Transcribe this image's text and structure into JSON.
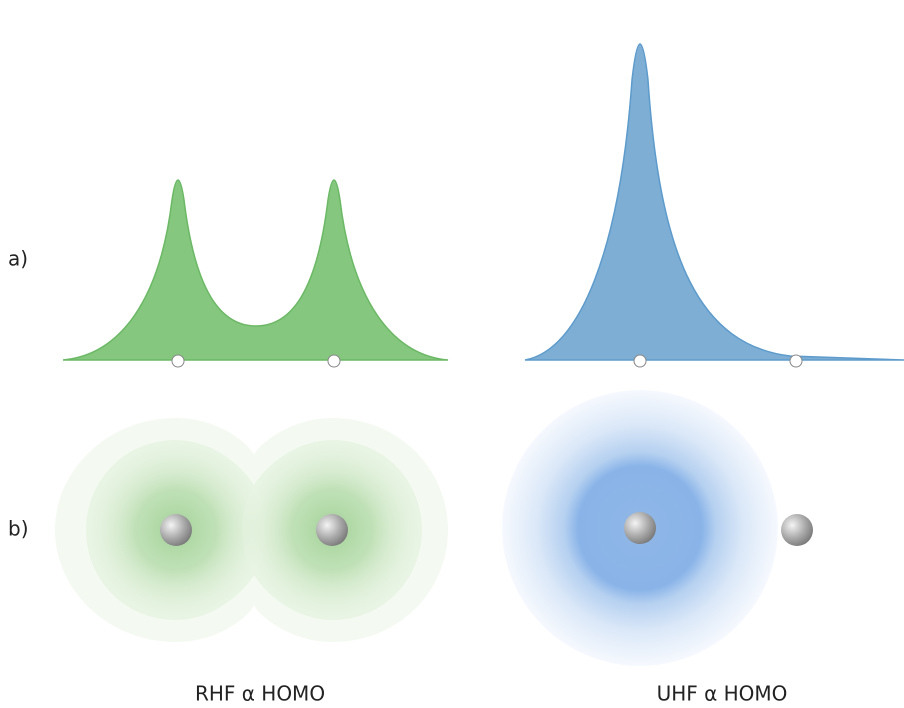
{
  "labels": {
    "a": "a)",
    "b": "b)"
  },
  "panels": [
    {
      "caption": "RHF α HOMO"
    },
    {
      "caption": "UHF α HOMO"
    }
  ]
}
